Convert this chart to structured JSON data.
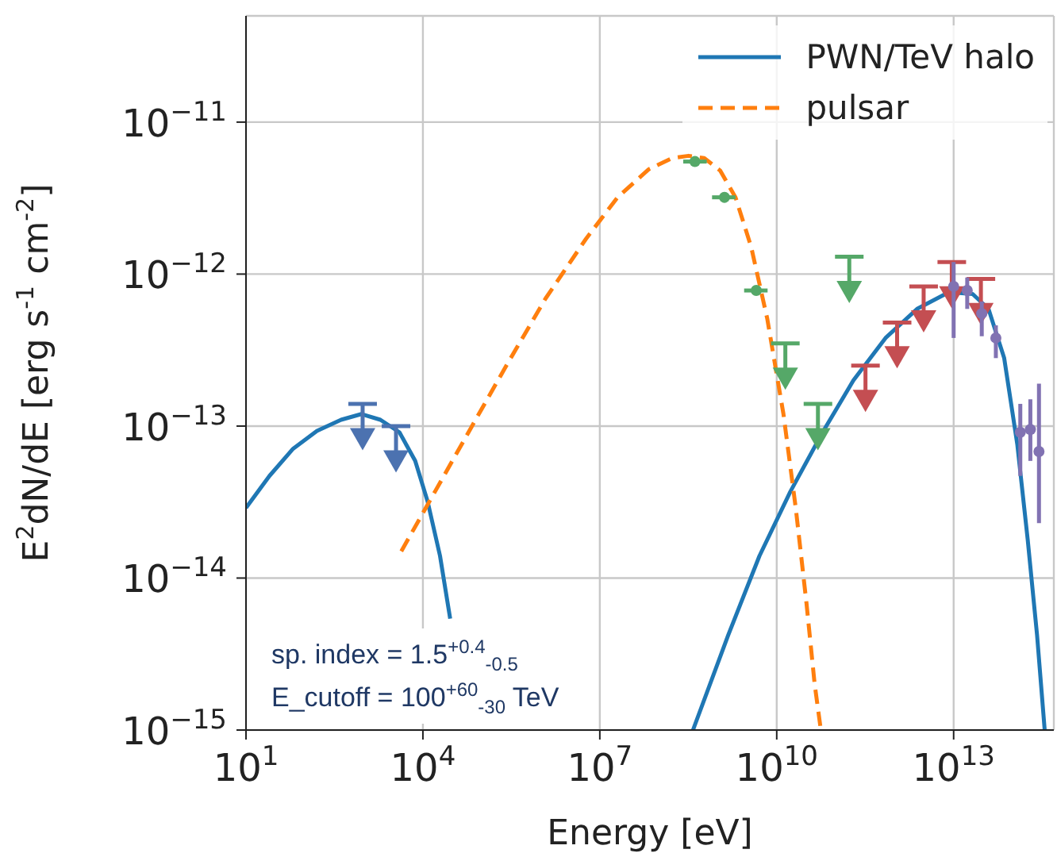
{
  "chart_data": {
    "type": "line",
    "xlabel": "Energy [eV]",
    "ylabel": "E$^{2}$dN/dE [erg s$^{-1}$ cm$^{-2}$]",
    "log": "xy",
    "grid": true,
    "legend": "top right",
    "xlim": [
      10,
      500000000000000.0
    ],
    "ylim": [
      1e-15,
      5e-11
    ],
    "xticks": [
      {
        "value": 10,
        "label": "10$^{1}$"
      },
      {
        "value": 10000,
        "label": "10$^{4}$"
      },
      {
        "value": 10000000.0,
        "label": "10$^{7}$"
      },
      {
        "value": 10000000000.0,
        "label": "10$^{10}$"
      },
      {
        "value": 10000000000000.0,
        "label": "10$^{13}$"
      }
    ],
    "yticks": [
      {
        "value": 1e-15,
        "label": "10$^{−15}$"
      },
      {
        "value": 1e-14,
        "label": "10$^{−14}$"
      },
      {
        "value": 1e-13,
        "label": "10$^{−13}$"
      },
      {
        "value": 1e-12,
        "label": "10$^{−12}$"
      },
      {
        "value": 1e-11,
        "label": "10$^{−11}$"
      }
    ],
    "annotations": [
      "sp. index = 1.5$^{+0.4}$$_{-0.5}$",
      "E_cutoff = 100$^{+60}$$_{-30}$ TeV"
    ],
    "series": [
      {
        "name": "PWN/TeV halo",
        "color": "#1f77b4",
        "line_style": "solid",
        "x": [
          10,
          25,
          63,
          160,
          410,
          910,
          1900,
          4000,
          7400,
          12000,
          19500,
          29000,
          1000000,
          380000000,
          1500000000,
          5100000000,
          17000000000,
          60000000000,
          200000000000,
          700000000000,
          2400000000000,
          8300000000000,
          21000000000000,
          39000000000000,
          72000000000000,
          120000000000000,
          180000000000000,
          260000000000000,
          350000000000000
        ],
        "values": [
          2.9e-14,
          4.7e-14,
          7.1e-14,
          9.3e-14,
          1.1e-13,
          1.2e-13,
          1.1e-13,
          9.1e-14,
          5.9e-14,
          3.2e-14,
          1.4e-14,
          5.4e-15,
          null,
          1e-15,
          4.2e-15,
          1.4e-14,
          3.7e-14,
          9.1e-14,
          2e-13,
          3.8e-13,
          5.9e-13,
          7.6e-13,
          7.4e-13,
          5.9e-13,
          2.8e-13,
          7.6e-14,
          1.8e-14,
          4.2e-15,
          1e-15
        ]
      },
      {
        "name": "pulsar",
        "color": "#ff7f0e",
        "line_style": "dashed",
        "x": [
          4300,
          16000,
          68000,
          260000,
          1200000,
          5800000,
          20000000,
          68000000,
          170000000,
          320000000,
          590000000,
          1100000000,
          2000000000,
          3700000000,
          6900000000,
          13000000000,
          21000000000,
          32000000000,
          44000000000,
          56000000000
        ],
        "values": [
          1.5e-14,
          3.7e-14,
          1e-13,
          2.5e-13,
          6.9e-13,
          1.7e-12,
          3.2e-12,
          4.9e-12,
          5.8e-12,
          6e-12,
          5.8e-12,
          4.8e-12,
          3.2e-12,
          1.5e-12,
          5.1e-13,
          1.2e-13,
          2.9e-14,
          6.8e-15,
          2e-15,
          1e-15
        ]
      },
      {
        "type": "scatter",
        "marker": "triangle",
        "color": "#4c72b0",
        "x": [
          950,
          3500
        ],
        "values": [
          8.4e-14,
          6e-14
        ],
        "errors": [
          [
            8.4e-14,
            1.4e-13
          ],
          [
            6e-14,
            1e-13
          ]
        ]
      },
      {
        "type": "scatter",
        "marker": "circle",
        "color": "#55a868",
        "x": [
          410000000,
          1300000000,
          4500000000
        ],
        "values": [
          5.5e-12,
          3.2e-12,
          7.8e-13
        ],
        "xerrors": [
          [
            260000000,
            650000000
          ],
          [
            800000000,
            2000000000
          ],
          [
            2800000000,
            7000000000
          ]
        ]
      },
      {
        "type": "scatter",
        "marker": "triangle",
        "color": "#55a868",
        "x": [
          14000000000,
          50000000000,
          170000000000
        ],
        "values": [
          2.1e-13,
          8.4e-14,
          7.8e-13
        ],
        "errors": [
          [
            2.1e-13,
            3.5e-13
          ],
          [
            8.4e-14,
            1.4e-13
          ],
          [
            7.8e-13,
            1.3e-12
          ]
        ]
      },
      {
        "type": "scatter",
        "marker": "triangle",
        "color": "#c44e52",
        "x": [
          320000000000,
          1100000000000,
          3100000000000,
          9300000000000,
          29000000000000
        ],
        "values": [
          1.5e-13,
          2.9e-13,
          5e-13,
          7.2e-13,
          5.6e-13
        ],
        "errors": [
          [
            1.5e-13,
            2.5e-13
          ],
          [
            2.9e-13,
            4.8e-13
          ],
          [
            5e-13,
            8.3e-13
          ],
          [
            7.2e-13,
            1.2e-12
          ],
          [
            5.6e-13,
            9.3e-13
          ]
        ]
      },
      {
        "type": "scatter",
        "marker": "circle",
        "color": "#8172b2",
        "x": [
          10000000000000,
          17000000000000,
          30000000000000,
          52000000000000,
          135000000000000,
          200000000000000,
          280000000000000
        ],
        "values": [
          8.3e-13,
          7.8e-13,
          5.5e-13,
          3.8e-13,
          9.1e-14,
          9.5e-14,
          6.8e-14
        ],
        "errors": [
          [
            3.8e-13,
            1.2e-12
          ],
          [
            5.9e-13,
            9.5e-13
          ],
          [
            3.9e-13,
            6.6e-13
          ],
          [
            2.8e-13,
            4.6e-13
          ],
          [
            4.7e-14,
            1.4e-13
          ],
          [
            5.9e-14,
            1.5e-13
          ],
          [
            2.3e-14,
            1.9e-13
          ]
        ]
      }
    ]
  }
}
